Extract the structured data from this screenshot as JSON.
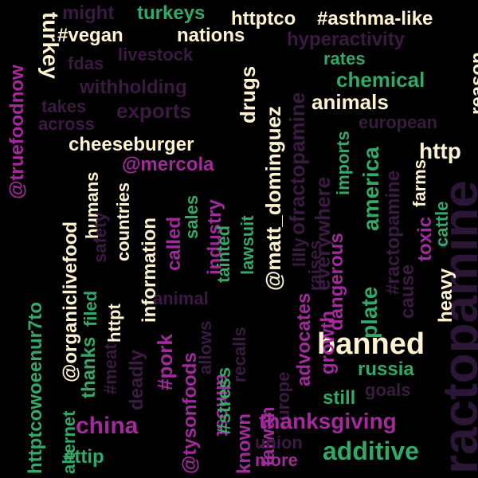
{
  "palette": {
    "background": "#000000",
    "cream": "#fdf3d0",
    "green": "#34a866",
    "magenta": "#a22a9c",
    "dark_plum": "#3a1a40",
    "deep_plum": "#2c1636"
  },
  "words": [
    {
      "text": "ractopamine",
      "color": "deep_plum"
    },
    {
      "text": "banned",
      "color": "cream"
    },
    {
      "text": "httptco",
      "color": "cream"
    },
    {
      "text": "#asthma-like",
      "color": "cream"
    },
    {
      "text": "turkeys",
      "color": "green"
    },
    {
      "text": "might",
      "color": "dark_plum"
    },
    {
      "text": "#vegan",
      "color": "cream"
    },
    {
      "text": "nations",
      "color": "cream"
    },
    {
      "text": "hyperactivity",
      "color": "dark_plum"
    },
    {
      "text": "turkey",
      "color": "cream"
    },
    {
      "text": "fdas",
      "color": "dark_plum"
    },
    {
      "text": "livestock",
      "color": "dark_plum"
    },
    {
      "text": "rates",
      "color": "green"
    },
    {
      "text": "chemical",
      "color": "green"
    },
    {
      "text": "reason",
      "color": "cream"
    },
    {
      "text": "withholding",
      "color": "dark_plum"
    },
    {
      "text": "takes",
      "color": "dark_plum"
    },
    {
      "text": "exports",
      "color": "dark_plum"
    },
    {
      "text": "across",
      "color": "dark_plum"
    },
    {
      "text": "animals",
      "color": "cream"
    },
    {
      "text": "european",
      "color": "dark_plum"
    },
    {
      "text": "@truefoodnow",
      "color": "magenta"
    },
    {
      "text": "cheeseburger",
      "color": "cream"
    },
    {
      "text": "http",
      "color": "cream"
    },
    {
      "text": "@mercola",
      "color": "magenta"
    },
    {
      "text": "drugs",
      "color": "cream"
    },
    {
      "text": "@matt_dominguez",
      "color": "cream"
    },
    {
      "text": "ofractopamine",
      "color": "dark_plum"
    },
    {
      "text": "everywhere",
      "color": "dark_plum"
    },
    {
      "text": "imports",
      "color": "green"
    },
    {
      "text": "america",
      "color": "green"
    },
    {
      "text": "#ractopamine",
      "color": "dark_plum"
    },
    {
      "text": "farms",
      "color": "cream"
    },
    {
      "text": "cattle",
      "color": "green"
    },
    {
      "text": "humans",
      "color": "cream"
    },
    {
      "text": "@organiclivefood",
      "color": "cream"
    },
    {
      "text": "countries",
      "color": "cream"
    },
    {
      "text": "httpt",
      "color": "cream"
    },
    {
      "text": "information",
      "color": "cream"
    },
    {
      "text": "sales",
      "color": "green"
    },
    {
      "text": "industry",
      "color": "magenta"
    },
    {
      "text": "lawsuit",
      "color": "green"
    },
    {
      "text": "tainted",
      "color": "green"
    },
    {
      "text": "safety",
      "color": "dark_plum"
    },
    {
      "text": "called",
      "color": "magenta"
    },
    {
      "text": "toxic",
      "color": "magenta"
    },
    {
      "text": "heavy",
      "color": "cream"
    },
    {
      "text": "raises",
      "color": "dark_plum"
    },
    {
      "text": "lilly",
      "color": "dark_plum"
    },
    {
      "text": "dangerous",
      "color": "magenta"
    },
    {
      "text": "plate",
      "color": "green"
    },
    {
      "text": "cause",
      "color": "dark_plum"
    },
    {
      "text": "httptcowoeenur7to",
      "color": "green"
    },
    {
      "text": "thanks",
      "color": "green"
    },
    {
      "text": "filed",
      "color": "green"
    },
    {
      "text": "animal",
      "color": "dark_plum"
    },
    {
      "text": "almost",
      "color": "magenta"
    },
    {
      "text": "advocates",
      "color": "magenta"
    },
    {
      "text": "growth",
      "color": "magenta"
    },
    {
      "text": "#pork",
      "color": "magenta"
    },
    {
      "text": "allows",
      "color": "dark_plum"
    },
    {
      "text": "recalls",
      "color": "dark_plum"
    },
    {
      "text": "#meat",
      "color": "dark_plum"
    },
    {
      "text": "deadly",
      "color": "dark_plum"
    },
    {
      "text": "@tysonfoods",
      "color": "magenta"
    },
    {
      "text": "#stress",
      "color": "green"
    },
    {
      "text": "known",
      "color": "magenta"
    },
    {
      "text": "taiwan",
      "color": "magenta"
    },
    {
      "text": "europe",
      "color": "dark_plum"
    },
    {
      "text": "russia",
      "color": "green"
    },
    {
      "text": "goals",
      "color": "dark_plum"
    },
    {
      "text": "still",
      "color": "green"
    },
    {
      "text": "alternet",
      "color": "green"
    },
    {
      "text": "china",
      "color": "magenta"
    },
    {
      "text": "thanksgiving",
      "color": "magenta"
    },
    {
      "text": "union",
      "color": "dark_plum"
    },
    {
      "text": "more",
      "color": "magenta"
    },
    {
      "text": "additive",
      "color": "green"
    },
    {
      "text": "#ttip",
      "color": "green"
    }
  ]
}
